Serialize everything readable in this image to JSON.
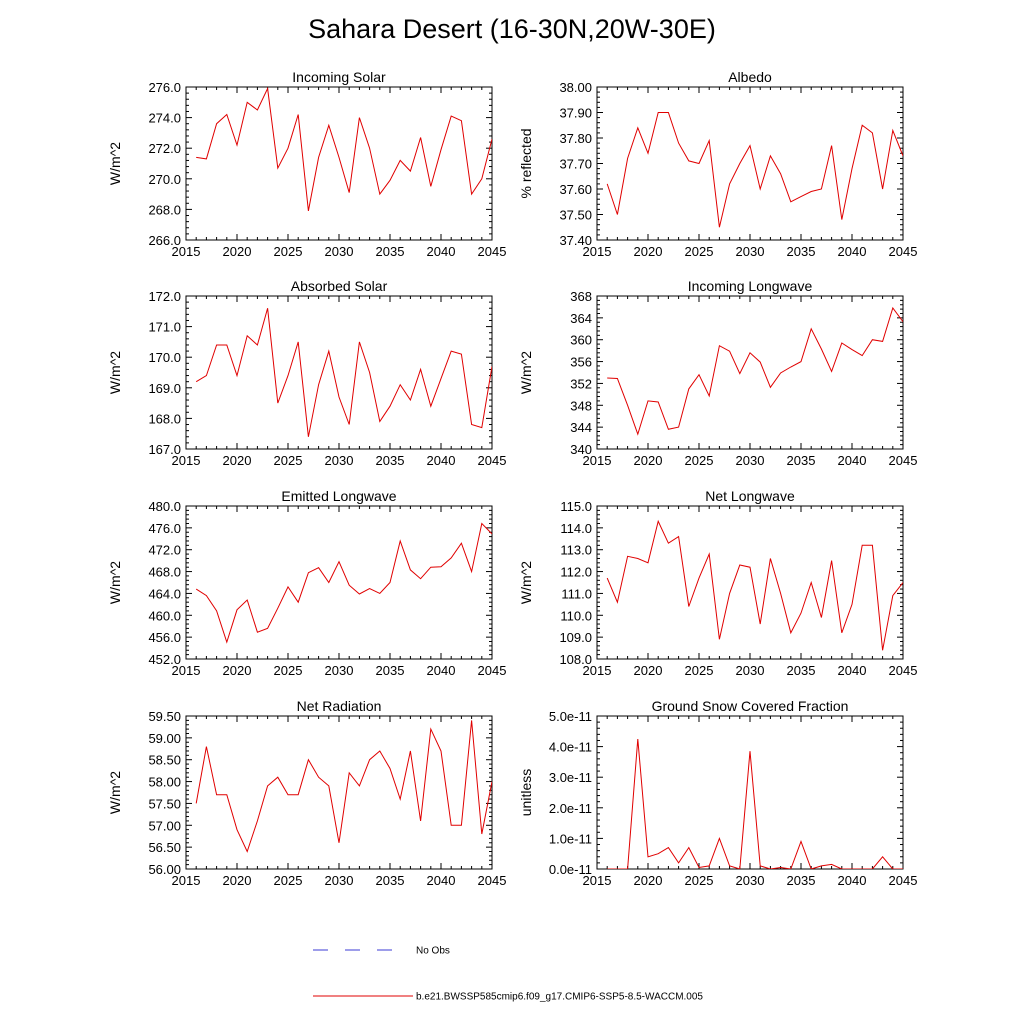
{
  "title": "Sahara Desert (16-30N,20W-30E)",
  "legend": {
    "obs_label": "No Obs",
    "model_label": "b.e21.BWSSP585cmip6.f09_g17.CMIP6-SSP5-8.5-WACCM.005",
    "obs_color": "#3b3bd6",
    "model_color": "#e00000"
  },
  "chart_data": [
    {
      "type": "line",
      "title": "Incoming Solar",
      "ylabel": "W/m^2",
      "xlim": [
        2015,
        2045
      ],
      "ylim": [
        266.0,
        276.0
      ],
      "xticks": [
        2015,
        2020,
        2025,
        2030,
        2035,
        2040,
        2045
      ],
      "xtick_labels": [
        "2015",
        "2020",
        "2025",
        "2030",
        "2035",
        "2040",
        "2045"
      ],
      "yticks": [
        266.0,
        268.0,
        270.0,
        272.0,
        274.0,
        276.0
      ],
      "ytick_labels": [
        "266.0",
        "268.0",
        "270.0",
        "272.0",
        "274.0",
        "276.0"
      ],
      "x": [
        2016,
        2017,
        2018,
        2019,
        2020,
        2021,
        2022,
        2023,
        2024,
        2025,
        2026,
        2027,
        2028,
        2029,
        2030,
        2031,
        2032,
        2033,
        2034,
        2035,
        2036,
        2037,
        2038,
        2039,
        2040,
        2041,
        2042,
        2043,
        2044,
        2045
      ],
      "values": [
        271.4,
        271.3,
        273.6,
        274.2,
        272.2,
        275.0,
        274.5,
        275.9,
        270.7,
        272.0,
        274.2,
        267.9,
        271.4,
        273.5,
        271.4,
        269.1,
        274.0,
        272.0,
        269.0,
        269.9,
        271.2,
        270.5,
        272.7,
        269.5,
        271.9,
        274.1,
        273.8,
        269.0,
        270.0,
        272.6
      ]
    },
    {
      "type": "line",
      "title": "Albedo",
      "ylabel": "% reflected",
      "xlim": [
        2015,
        2045
      ],
      "ylim": [
        37.4,
        38.0
      ],
      "xticks": [
        2015,
        2020,
        2025,
        2030,
        2035,
        2040,
        2045
      ],
      "xtick_labels": [
        "2015",
        "2020",
        "2025",
        "2030",
        "2035",
        "2040",
        "2045"
      ],
      "yticks": [
        37.4,
        37.5,
        37.6,
        37.7,
        37.8,
        37.9,
        38.0
      ],
      "ytick_labels": [
        "37.40",
        "37.50",
        "37.60",
        "37.70",
        "37.80",
        "37.90",
        "38.00"
      ],
      "x": [
        2016,
        2017,
        2018,
        2019,
        2020,
        2021,
        2022,
        2023,
        2024,
        2025,
        2026,
        2027,
        2028,
        2029,
        2030,
        2031,
        2032,
        2033,
        2034,
        2035,
        2036,
        2037,
        2038,
        2039,
        2040,
        2041,
        2042,
        2043,
        2044,
        2045
      ],
      "values": [
        37.62,
        37.5,
        37.72,
        37.84,
        37.74,
        37.9,
        37.9,
        37.78,
        37.71,
        37.7,
        37.79,
        37.45,
        37.62,
        37.7,
        37.77,
        37.6,
        37.73,
        37.66,
        37.55,
        37.57,
        37.59,
        37.6,
        37.77,
        37.48,
        37.68,
        37.85,
        37.82,
        37.6,
        37.83,
        37.73
      ]
    },
    {
      "type": "line",
      "title": "Absorbed Solar",
      "ylabel": "W/m^2",
      "xlim": [
        2015,
        2045
      ],
      "ylim": [
        167.0,
        172.0
      ],
      "xticks": [
        2015,
        2020,
        2025,
        2030,
        2035,
        2040,
        2045
      ],
      "xtick_labels": [
        "2015",
        "2020",
        "2025",
        "2030",
        "2035",
        "2040",
        "2045"
      ],
      "yticks": [
        167.0,
        168.0,
        169.0,
        170.0,
        171.0,
        172.0
      ],
      "ytick_labels": [
        "167.0",
        "168.0",
        "169.0",
        "170.0",
        "171.0",
        "172.0"
      ],
      "x": [
        2016,
        2017,
        2018,
        2019,
        2020,
        2021,
        2022,
        2023,
        2024,
        2025,
        2026,
        2027,
        2028,
        2029,
        2030,
        2031,
        2032,
        2033,
        2034,
        2035,
        2036,
        2037,
        2038,
        2039,
        2040,
        2041,
        2042,
        2043,
        2044,
        2045
      ],
      "values": [
        169.2,
        169.4,
        170.4,
        170.4,
        169.4,
        170.7,
        170.4,
        171.6,
        168.5,
        169.4,
        170.5,
        167.4,
        169.1,
        170.2,
        168.7,
        167.8,
        170.5,
        169.5,
        167.9,
        168.4,
        169.1,
        168.6,
        169.6,
        168.4,
        169.3,
        170.2,
        170.1,
        167.8,
        167.7,
        169.7
      ]
    },
    {
      "type": "line",
      "title": "Incoming Longwave",
      "ylabel": "W/m^2",
      "xlim": [
        2015,
        2045
      ],
      "ylim": [
        340,
        368
      ],
      "xticks": [
        2015,
        2020,
        2025,
        2030,
        2035,
        2040,
        2045
      ],
      "xtick_labels": [
        "2015",
        "2020",
        "2025",
        "2030",
        "2035",
        "2040",
        "2045"
      ],
      "yticks": [
        340,
        344,
        348,
        352,
        356,
        360,
        364,
        368
      ],
      "ytick_labels": [
        "340",
        "344",
        "348",
        "352",
        "356",
        "360",
        "364",
        "368"
      ],
      "x": [
        2016,
        2017,
        2018,
        2019,
        2020,
        2021,
        2022,
        2023,
        2024,
        2025,
        2026,
        2027,
        2028,
        2029,
        2030,
        2031,
        2032,
        2033,
        2034,
        2035,
        2036,
        2037,
        2038,
        2039,
        2040,
        2041,
        2042,
        2043,
        2044,
        2045
      ],
      "values": [
        353.0,
        352.9,
        348.0,
        342.7,
        348.8,
        348.6,
        343.6,
        344.0,
        351.0,
        353.6,
        349.7,
        358.9,
        357.9,
        353.8,
        357.6,
        355.9,
        351.3,
        353.9,
        355.0,
        356.0,
        362.0,
        358.3,
        354.2,
        359.4,
        358.2,
        357.1,
        360.0,
        359.7,
        365.8,
        363.3
      ]
    },
    {
      "type": "line",
      "title": "Emitted Longwave",
      "ylabel": "W/m^2",
      "xlim": [
        2015,
        2045
      ],
      "ylim": [
        452.0,
        480.0
      ],
      "xticks": [
        2015,
        2020,
        2025,
        2030,
        2035,
        2040,
        2045
      ],
      "xtick_labels": [
        "2015",
        "2020",
        "2025",
        "2030",
        "2035",
        "2040",
        "2045"
      ],
      "yticks": [
        452.0,
        456.0,
        460.0,
        464.0,
        468.0,
        472.0,
        476.0,
        480.0
      ],
      "ytick_labels": [
        "452.0",
        "456.0",
        "460.0",
        "464.0",
        "468.0",
        "472.0",
        "476.0",
        "480.0"
      ],
      "x": [
        2016,
        2017,
        2018,
        2019,
        2020,
        2021,
        2022,
        2023,
        2024,
        2025,
        2026,
        2027,
        2028,
        2029,
        2030,
        2031,
        2032,
        2033,
        2034,
        2035,
        2036,
        2037,
        2038,
        2039,
        2040,
        2041,
        2042,
        2043,
        2044,
        2045
      ],
      "values": [
        464.8,
        463.6,
        460.8,
        455.1,
        461.0,
        462.8,
        456.9,
        457.6,
        461.3,
        465.2,
        462.4,
        467.8,
        468.7,
        466.0,
        469.8,
        465.5,
        463.9,
        464.9,
        464.0,
        466.0,
        473.6,
        468.3,
        466.7,
        468.8,
        468.9,
        470.5,
        473.2,
        468.0,
        476.8,
        474.9
      ]
    },
    {
      "type": "line",
      "title": "Net Longwave",
      "ylabel": "W/m^2",
      "xlim": [
        2015,
        2045
      ],
      "ylim": [
        108.0,
        115.0
      ],
      "xticks": [
        2015,
        2020,
        2025,
        2030,
        2035,
        2040,
        2045
      ],
      "xtick_labels": [
        "2015",
        "2020",
        "2025",
        "2030",
        "2035",
        "2040",
        "2045"
      ],
      "yticks": [
        108.0,
        109.0,
        110.0,
        111.0,
        112.0,
        113.0,
        114.0,
        115.0
      ],
      "ytick_labels": [
        "108.0",
        "109.0",
        "110.0",
        "111.0",
        "112.0",
        "113.0",
        "114.0",
        "115.0"
      ],
      "x": [
        2016,
        2017,
        2018,
        2019,
        2020,
        2021,
        2022,
        2023,
        2024,
        2025,
        2026,
        2027,
        2028,
        2029,
        2030,
        2031,
        2032,
        2033,
        2034,
        2035,
        2036,
        2037,
        2038,
        2039,
        2040,
        2041,
        2042,
        2043,
        2044,
        2045
      ],
      "values": [
        111.7,
        110.6,
        112.7,
        112.6,
        112.4,
        114.3,
        113.3,
        113.6,
        110.4,
        111.7,
        112.8,
        108.9,
        111.0,
        112.3,
        112.2,
        109.6,
        112.6,
        111.0,
        109.2,
        110.1,
        111.5,
        109.9,
        112.5,
        109.2,
        110.5,
        113.2,
        113.2,
        108.4,
        110.9,
        111.5
      ]
    },
    {
      "type": "line",
      "title": "Net Radiation",
      "ylabel": "W/m^2",
      "xlim": [
        2015,
        2045
      ],
      "ylim": [
        56.0,
        59.5
      ],
      "xticks": [
        2015,
        2020,
        2025,
        2030,
        2035,
        2040,
        2045
      ],
      "xtick_labels": [
        "2015",
        "2020",
        "2025",
        "2030",
        "2035",
        "2040",
        "2045"
      ],
      "yticks": [
        56.0,
        56.5,
        57.0,
        57.5,
        58.0,
        58.5,
        59.0,
        59.5
      ],
      "ytick_labels": [
        "56.00",
        "56.50",
        "57.00",
        "57.50",
        "58.00",
        "58.50",
        "59.00",
        "59.50"
      ],
      "x": [
        2016,
        2017,
        2018,
        2019,
        2020,
        2021,
        2022,
        2023,
        2024,
        2025,
        2026,
        2027,
        2028,
        2029,
        2030,
        2031,
        2032,
        2033,
        2034,
        2035,
        2036,
        2037,
        2038,
        2039,
        2040,
        2041,
        2042,
        2043,
        2044,
        2045
      ],
      "values": [
        57.5,
        58.8,
        57.7,
        57.7,
        56.9,
        56.4,
        57.1,
        57.9,
        58.1,
        57.7,
        57.7,
        58.5,
        58.1,
        57.9,
        56.6,
        58.2,
        57.9,
        58.5,
        58.7,
        58.3,
        57.6,
        58.7,
        57.1,
        59.2,
        58.7,
        57.0,
        57.0,
        59.4,
        56.8,
        58.0
      ]
    },
    {
      "type": "line",
      "title": "Ground Snow Covered Fraction",
      "ylabel": "unitless",
      "xlim": [
        2015,
        2045
      ],
      "ylim": [
        0,
        5e-11
      ],
      "xticks": [
        2015,
        2020,
        2025,
        2030,
        2035,
        2040,
        2045
      ],
      "xtick_labels": [
        "2015",
        "2020",
        "2025",
        "2030",
        "2035",
        "2040",
        "2045"
      ],
      "yticks": [
        0,
        1e-11,
        2e-11,
        3e-11,
        4e-11,
        5e-11
      ],
      "ytick_labels": [
        "0.0e-11",
        "1.0e-11",
        "2.0e-11",
        "3.0e-11",
        "4.0e-11",
        "5.0e-11"
      ],
      "x": [
        2016,
        2017,
        2018,
        2019,
        2020,
        2021,
        2022,
        2023,
        2024,
        2025,
        2026,
        2027,
        2028,
        2029,
        2030,
        2031,
        2032,
        2033,
        2034,
        2035,
        2036,
        2037,
        2038,
        2039,
        2040,
        2041,
        2042,
        2043,
        2044,
        2045
      ],
      "values": [
        0,
        0,
        0,
        4.25e-11,
        4e-12,
        5e-12,
        7e-12,
        2e-12,
        7e-12,
        5e-13,
        1e-12,
        1e-11,
        1e-12,
        0,
        3.85e-11,
        1e-12,
        0,
        5e-13,
        0,
        9e-12,
        0,
        1e-12,
        1.5e-12,
        0,
        0,
        0,
        0,
        4e-12,
        0,
        0
      ]
    }
  ]
}
